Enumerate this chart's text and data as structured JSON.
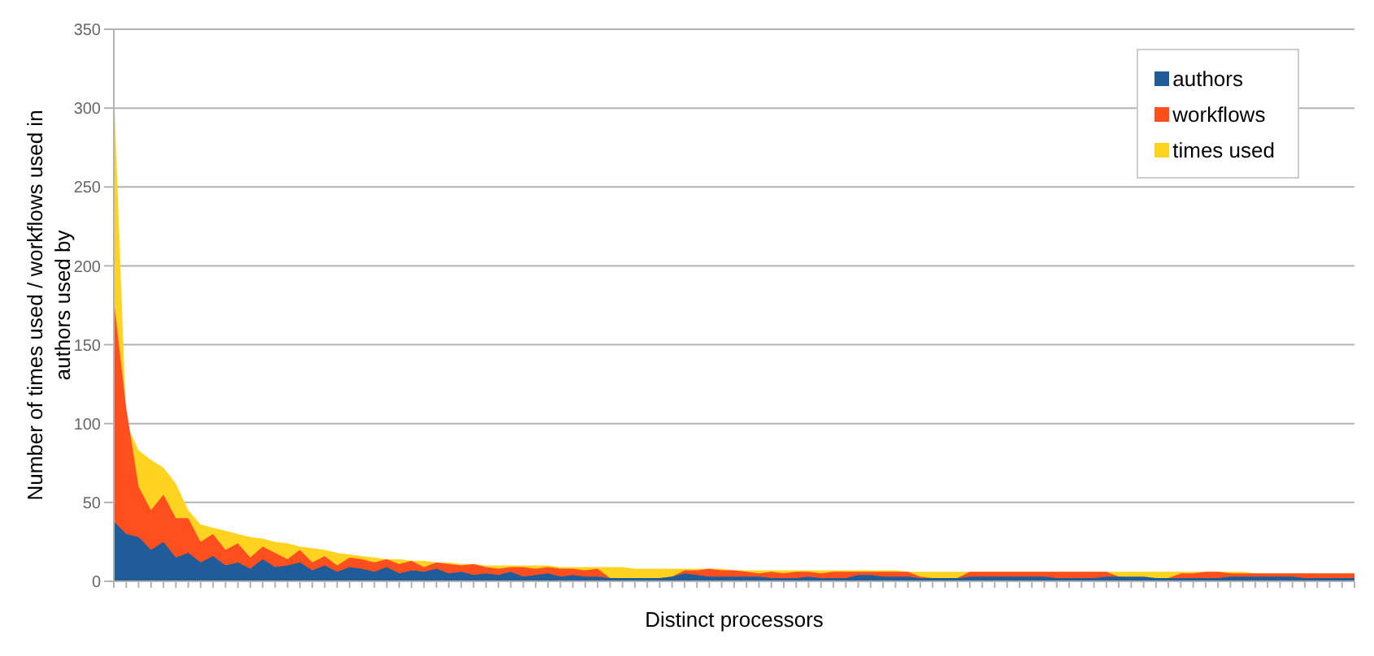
{
  "chart_data": {
    "type": "area",
    "xlabel": "Distinct processors",
    "ylabel": "Number of times used / workflows used in\nauthors used by",
    "categories": [
      null,
      null,
      null,
      null,
      null,
      null,
      null,
      null,
      null,
      null,
      null,
      null,
      null,
      null,
      null,
      null,
      null,
      null,
      null,
      null,
      null,
      null,
      null,
      null,
      null,
      null,
      null,
      null,
      null,
      null,
      null,
      null,
      null,
      null,
      null,
      null,
      null,
      null,
      null,
      null,
      null,
      null,
      null,
      null,
      null,
      null,
      null,
      null,
      null,
      null,
      null,
      null,
      null,
      null,
      null,
      null,
      null,
      null,
      null,
      null,
      null,
      null,
      null,
      null,
      null,
      null,
      null,
      null,
      null,
      null,
      null,
      null,
      null,
      null,
      null,
      null,
      null,
      null,
      null,
      null,
      null,
      null,
      null,
      null,
      null,
      null,
      null,
      null,
      null,
      null,
      null,
      null,
      null,
      null,
      null,
      null,
      null,
      null,
      null,
      null,
      null
    ],
    "series": [
      {
        "name": "authors",
        "color": "#1f5c99",
        "values": [
          38,
          30,
          28,
          20,
          25,
          15,
          18,
          12,
          16,
          10,
          12,
          8,
          14,
          9,
          10,
          12,
          7,
          10,
          6,
          9,
          8,
          6,
          9,
          5,
          7,
          6,
          8,
          5,
          6,
          4,
          5,
          4,
          6,
          3,
          4,
          5,
          3,
          4,
          3,
          3,
          2,
          2,
          2,
          2,
          2,
          3,
          5,
          4,
          3,
          3,
          3,
          3,
          3,
          2,
          2,
          2,
          3,
          2,
          2,
          2,
          4,
          4,
          3,
          3,
          3,
          2,
          2,
          2,
          2,
          3,
          3,
          3,
          3,
          3,
          3,
          3,
          2,
          2,
          2,
          2,
          3,
          3,
          3,
          3,
          2,
          2,
          2,
          2,
          2,
          2,
          3,
          3,
          3,
          3,
          3,
          3,
          2,
          2,
          2,
          2,
          2
        ]
      },
      {
        "name": "workflows",
        "color": "#ff4f1f",
        "values": [
          178,
          110,
          60,
          45,
          55,
          40,
          40,
          25,
          30,
          20,
          24,
          15,
          22,
          18,
          14,
          20,
          12,
          16,
          10,
          15,
          14,
          12,
          14,
          11,
          13,
          9,
          12,
          11,
          10,
          11,
          9,
          8,
          9,
          9,
          8,
          9,
          8,
          8,
          7,
          8,
          2,
          2,
          2,
          2,
          2,
          3,
          7,
          7,
          8,
          7,
          7,
          6,
          5,
          6,
          5,
          6,
          6,
          5,
          6,
          6,
          6,
          6,
          6,
          6,
          6,
          3,
          2,
          2,
          2,
          6,
          6,
          6,
          6,
          6,
          6,
          6,
          6,
          6,
          6,
          6,
          6,
          3,
          2,
          2,
          2,
          2,
          5,
          5,
          6,
          6,
          5,
          5,
          5,
          5,
          5,
          5,
          5,
          5,
          5,
          5,
          5
        ]
      },
      {
        "name": "times used",
        "color": "#ffd320",
        "values": [
          313,
          100,
          83,
          77,
          72,
          62,
          45,
          36,
          34,
          32,
          30,
          28,
          27,
          25,
          24,
          22,
          21,
          20,
          18,
          17,
          16,
          15,
          14,
          14,
          13,
          13,
          12,
          12,
          11,
          11,
          10,
          10,
          10,
          10,
          10,
          10,
          9,
          9,
          9,
          9,
          9,
          9,
          8,
          8,
          8,
          8,
          8,
          8,
          8,
          8,
          7,
          7,
          7,
          7,
          7,
          7,
          7,
          7,
          7,
          7,
          7,
          7,
          7,
          7,
          6,
          6,
          6,
          6,
          6,
          6,
          6,
          6,
          6,
          6,
          6,
          6,
          6,
          6,
          6,
          6,
          6,
          6,
          6,
          6,
          6,
          6,
          6,
          6,
          6,
          6,
          6,
          6,
          5,
          5,
          5,
          5,
          5,
          5,
          5,
          5,
          5
        ]
      }
    ],
    "ylim": [
      0,
      350
    ],
    "yticks": [
      0,
      50,
      100,
      150,
      200,
      250,
      300,
      350
    ],
    "grid": "y",
    "legend": "top right",
    "tick_labels": "y"
  }
}
